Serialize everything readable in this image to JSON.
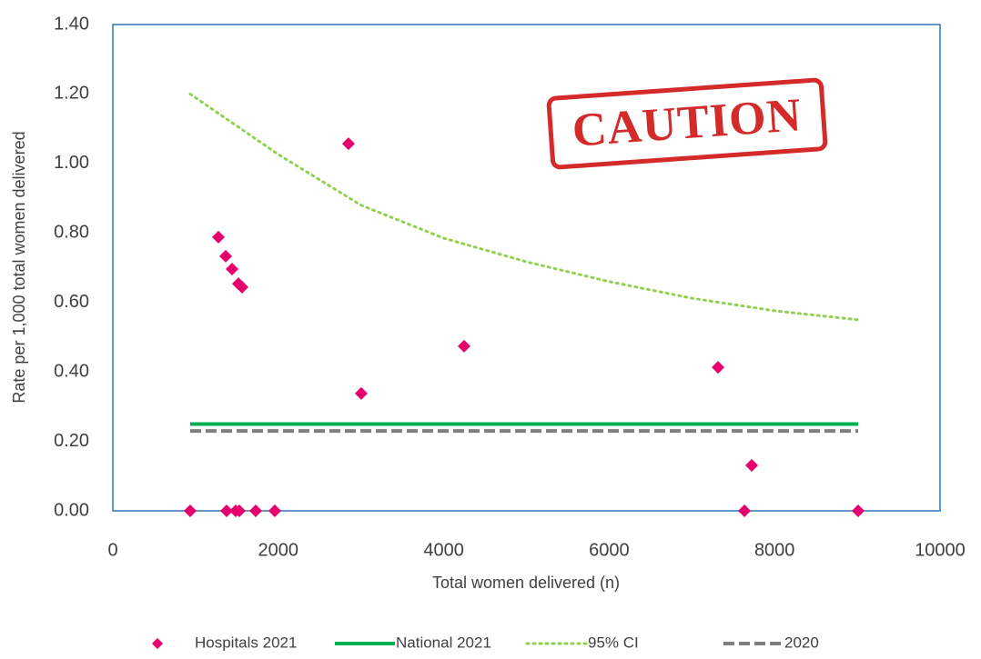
{
  "chart_data": {
    "type": "scatter",
    "x_label": "Total women delivered (n)",
    "y_label": "Rate per 1,000 total women delivered",
    "stamp": "CAUTION",
    "xlim": [
      0,
      10000
    ],
    "xticks": [
      0,
      2000,
      4000,
      6000,
      8000,
      10000
    ],
    "ylim": [
      0,
      1.4
    ],
    "yticks": [
      {
        "value": 0,
        "label": "0.00"
      },
      {
        "value": 0.2,
        "label": "0.20"
      },
      {
        "value": 0.4,
        "label": "0.40"
      },
      {
        "value": 0.6,
        "label": "0.60"
      },
      {
        "value": 0.8,
        "label": "0.80"
      },
      {
        "value": 1.0,
        "label": "1.00"
      },
      {
        "value": 1.2,
        "label": "1.20"
      },
      {
        "value": 1.4,
        "label": "1.40"
      }
    ],
    "grid": false,
    "legend": "bottom",
    "series": [
      {
        "name": "Hospitals 2021",
        "color": "#e6006e",
        "style": "diamond",
        "x": [
          935,
          1276,
          1364,
          1441,
          1518,
          1562,
          2849,
          3003,
          4246,
          7316,
          7723,
          1375,
          1485,
          1529,
          1727,
          1958,
          7635,
          9010
        ],
        "values": [
          0,
          0.788,
          0.733,
          0.696,
          0.654,
          0.644,
          1.057,
          0.338,
          0.474,
          0.413,
          0.131,
          0,
          0,
          0,
          0,
          0,
          0,
          0
        ]
      },
      {
        "name": "National 2021",
        "color": "#00b050",
        "style": "solid",
        "x": [
          935,
          9010
        ],
        "values": [
          0.25,
          0.25
        ]
      },
      {
        "name": "95% CI",
        "color": "#92d050",
        "style": "dotted",
        "x": [
          935,
          2000,
          3000,
          4000,
          5000,
          6000,
          7000,
          8000,
          9010
        ],
        "values": [
          1.2,
          1.026,
          0.88,
          0.785,
          0.717,
          0.66,
          0.612,
          0.576,
          0.55
        ]
      },
      {
        "name": "2020",
        "color": "#7f7f7f",
        "style": "dashed",
        "x": [
          935,
          9010
        ],
        "values": [
          0.23,
          0.23
        ]
      }
    ]
  }
}
